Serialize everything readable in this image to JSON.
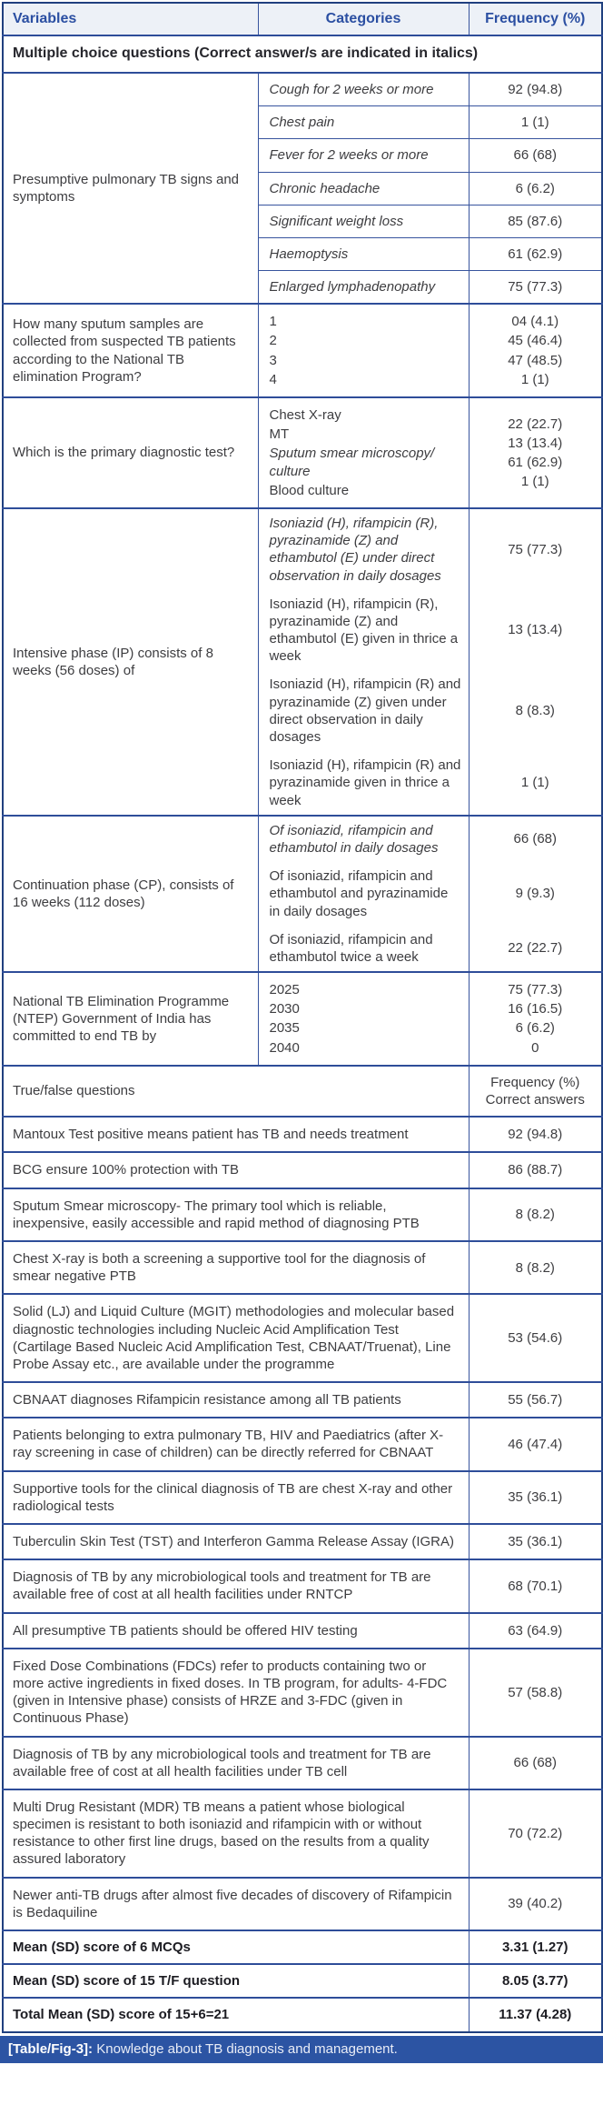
{
  "header": {
    "variables": "Variables",
    "categories": "Categories",
    "frequency": "Frequency (%)"
  },
  "mcq_title": "Multiple choice questions (Correct answer/s are indicated in italics)",
  "blocks": {
    "signs": {
      "variable": "Presumptive pulmonary TB signs and symptoms",
      "rows": [
        {
          "category": "Cough for 2 weeks or more",
          "value": "92 (94.8)"
        },
        {
          "category": "Chest pain",
          "value": "1 (1)"
        },
        {
          "category": "Fever for 2 weeks or more",
          "value": "66 (68)"
        },
        {
          "category": "Chronic headache",
          "value": "6 (6.2)"
        },
        {
          "category": "Significant weight loss",
          "value": "85 (87.6)"
        },
        {
          "category": "Haemoptysis",
          "value": "61 (62.9)"
        },
        {
          "category": "Enlarged lymphadenopathy",
          "value": "75 (77.3)"
        }
      ]
    },
    "sputum": {
      "variable": "How many sputum samples are collected from suspected TB patients according to the National TB elimination Program?",
      "categories": [
        "1",
        "2",
        "3",
        "4"
      ],
      "values": [
        "04 (4.1)",
        "45 (46.4)",
        "47 (48.5)",
        "1 (1)"
      ]
    },
    "diagnostic": {
      "variable": "Which is the primary diagnostic test?",
      "categories": [
        "Chest X-ray",
        "MT",
        "Sputum smear microscopy/ culture",
        "Blood culture"
      ],
      "values": [
        "22 (22.7)",
        "13 (13.4)",
        "61 (62.9)",
        "1 (1)"
      ]
    },
    "intensive": {
      "variable": "Intensive phase (IP) consists of 8 weeks (56 doses) of",
      "groups": [
        {
          "category": "Isoniazid (H), rifampicin (R), pyrazinamide (Z) and ethambutol (E) under direct observation in daily dosages",
          "value": "75 (77.3)"
        },
        {
          "category": "Isoniazid (H), rifampicin (R), pyrazinamide (Z) and ethambutol (E) given in thrice a week",
          "value": "13 (13.4)"
        },
        {
          "category": "Isoniazid (H), rifampicin (R) and pyrazinamide (Z) given under direct observation in daily dosages",
          "value": "8 (8.3)"
        },
        {
          "category": "Isoniazid (H), rifampicin (R) and pyrazinamide given in thrice a week",
          "value": "1 (1)"
        }
      ]
    },
    "continuation": {
      "variable": "Continuation phase (CP), consists of 16 weeks (112 doses)",
      "groups": [
        {
          "category": "Of isoniazid, rifampicin and ethambutol in daily dosages",
          "value": "66 (68)"
        },
        {
          "category": "Of isoniazid, rifampicin and ethambutol and pyrazinamide in daily dosages",
          "value": "9 (9.3)"
        },
        {
          "category": "Of isoniazid, rifampicin and ethambutol twice a week",
          "value": "22 (22.7)"
        }
      ]
    },
    "ntep": {
      "variable": "National TB Elimination Programme (NTEP) Government of India has committed to end TB by",
      "categories": [
        "2025",
        "2030",
        "2035",
        "2040"
      ],
      "values": [
        "75 (77.3)",
        "16 (16.5)",
        "6 (6.2)",
        "0"
      ]
    }
  },
  "tf_section": {
    "title": "True/false questions",
    "frequency_lines": [
      "Frequency (%)",
      "Correct",
      "answers"
    ]
  },
  "tf_rows": [
    {
      "statement": "Mantoux Test positive means patient has TB and needs treatment",
      "value": "92 (94.8)"
    },
    {
      "statement": "BCG ensure 100% protection with TB",
      "value": "86 (88.7)"
    },
    {
      "statement": "Sputum Smear microscopy- The primary tool which is reliable, inexpensive, easily accessible and rapid method of diagnosing PTB",
      "value": "8 (8.2)"
    },
    {
      "statement": "Chest X-ray is both a screening a supportive tool for the diagnosis of smear negative PTB",
      "value": "8 (8.2)"
    },
    {
      "statement": "Solid (LJ) and Liquid Culture (MGIT) methodologies and molecular based diagnostic technologies including Nucleic Acid Amplification Test (Cartilage Based Nucleic Acid Amplification Test, CBNAAT/Truenat), Line Probe Assay etc., are available under the programme",
      "value": "53 (54.6)"
    },
    {
      "statement": "CBNAAT diagnoses Rifampicin resistance among all TB patients",
      "value": "55 (56.7)"
    },
    {
      "statement": "Patients belonging to extra pulmonary TB, HIV and Paediatrics (after X-ray screening in case of children) can be directly referred for CBNAAT",
      "value": "46 (47.4)"
    },
    {
      "statement": "Supportive tools for the clinical diagnosis of TB are chest X-ray and other radiological tests",
      "value": "35 (36.1)"
    },
    {
      "statement": "Tuberculin Skin Test (TST) and Interferon Gamma Release Assay (IGRA)",
      "value": "35 (36.1)"
    },
    {
      "statement": "Diagnosis of TB by any microbiological tools and treatment for TB are available free of cost at all health facilities under RNTCP",
      "value": "68 (70.1)"
    },
    {
      "statement": "All presumptive TB patients should be offered HIV testing",
      "value": "63 (64.9)"
    },
    {
      "statement": "Fixed Dose Combinations (FDCs) refer to products containing two or more active ingredients in fixed doses. In TB program, for adults- 4-FDC (given in Intensive phase) consists of HRZE and 3-FDC (given in Continuous Phase)",
      "value": "57 (58.8)"
    },
    {
      "statement": "Diagnosis of TB by any microbiological tools and treatment for TB are available free of cost at all health facilities under TB cell",
      "value": "66 (68)"
    },
    {
      "statement": "Multi Drug Resistant (MDR) TB means a patient whose biological specimen is resistant to both isoniazid and rifampicin with or without resistance to other first line drugs, based on the results from a quality assured laboratory",
      "value": "70 (72.2)"
    },
    {
      "statement": "Newer anti-TB drugs after almost five decades of discovery of Rifampicin is Bedaquiline",
      "value": "39 (40.2)"
    }
  ],
  "summary_rows": [
    {
      "label": "Mean (SD) score of 6 MCQs",
      "value": "3.31 (1.27)"
    },
    {
      "label": "Mean (SD) score of 15 T/F question",
      "value": "8.05 (3.77)"
    },
    {
      "label": "Total Mean (SD) score of 15+6=21",
      "value": "11.37 (4.28)"
    }
  ],
  "caption": {
    "tag": "[Table/Fig-3]:",
    "text": "Knowledge about TB diagnosis and management."
  },
  "colors": {
    "accent_blue": "#2b4fa2",
    "caption_bg": "#2c54a3",
    "header_bg": "#edf1f7",
    "grid_border": "#37549e"
  }
}
